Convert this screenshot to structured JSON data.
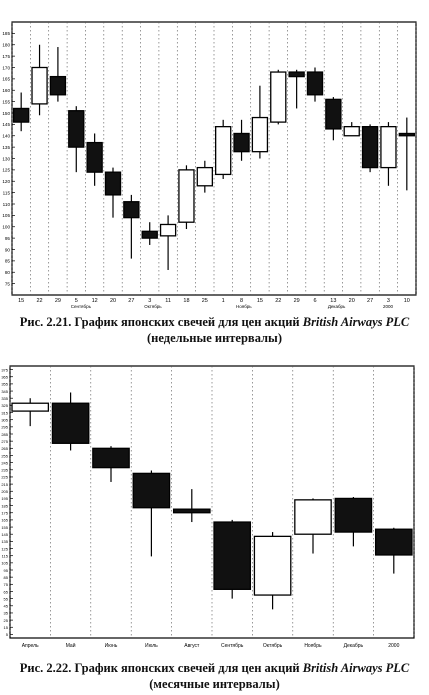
{
  "figures": [
    {
      "caption_prefix": "Рис. 2.21. График японских свечей для цен акций ",
      "caption_company": "British Airways PLC",
      "caption_suffix": "(недельные интервалы)"
    },
    {
      "caption_prefix": "Рис. 2.22. График японских свечей для цен акций ",
      "caption_company": "British Airways PLC",
      "caption_suffix": "(месячные интервалы)"
    }
  ],
  "chart_data": [
    {
      "type": "candlestick",
      "title": "",
      "ylim": [
        70,
        190
      ],
      "yticks": [
        75,
        80,
        85,
        90,
        95,
        100,
        105,
        110,
        115,
        120,
        125,
        130,
        135,
        140,
        145,
        150,
        155,
        160,
        165,
        170,
        175,
        180,
        185
      ],
      "grid": true,
      "x_tick_labels": [
        "15",
        "22",
        "29",
        "5",
        "12",
        "20",
        "27",
        "3",
        "11",
        "18",
        "25",
        "1",
        "8",
        "15",
        "22",
        "29",
        "6",
        "13",
        "20",
        "27",
        "3",
        "10"
      ],
      "month_labels": [
        {
          "after_index": 3,
          "label": "Сентябрь"
        },
        {
          "after_index": 7,
          "label": "Октябрь"
        },
        {
          "after_index": 12,
          "label": "Ноябрь"
        },
        {
          "after_index": 17,
          "label": "Декабрь"
        },
        {
          "after_index": 20,
          "label": "2000"
        }
      ],
      "candles": [
        {
          "open": 152,
          "close": 146,
          "high": 159,
          "low": 142
        },
        {
          "open": 154,
          "close": 170,
          "high": 180,
          "low": 149
        },
        {
          "open": 166,
          "close": 158,
          "high": 179,
          "low": 155
        },
        {
          "open": 151,
          "close": 135,
          "high": 153,
          "low": 124
        },
        {
          "open": 137,
          "close": 124,
          "high": 141,
          "low": 118
        },
        {
          "open": 124,
          "close": 114,
          "high": 126,
          "low": 104
        },
        {
          "open": 111,
          "close": 104,
          "high": 114,
          "low": 86
        },
        {
          "open": 98,
          "close": 95,
          "high": 102,
          "low": 92
        },
        {
          "open": 96,
          "close": 101,
          "high": 105,
          "low": 81
        },
        {
          "open": 102,
          "close": 125,
          "high": 127,
          "low": 99
        },
        {
          "open": 118,
          "close": 126,
          "high": 129,
          "low": 115
        },
        {
          "open": 123,
          "close": 144,
          "high": 147,
          "low": 121
        },
        {
          "open": 141,
          "close": 133,
          "high": 147,
          "low": 129
        },
        {
          "open": 133,
          "close": 148,
          "high": 162,
          "low": 130
        },
        {
          "open": 146,
          "close": 168,
          "high": 169,
          "low": 145
        },
        {
          "open": 168,
          "close": 166,
          "high": 169,
          "low": 152
        },
        {
          "open": 168,
          "close": 158,
          "high": 170,
          "low": 155
        },
        {
          "open": 156,
          "close": 143,
          "high": 157,
          "low": 138
        },
        {
          "open": 140,
          "close": 144,
          "high": 146,
          "low": 140
        },
        {
          "open": 144,
          "close": 126,
          "high": 145,
          "low": 124
        },
        {
          "open": 126,
          "close": 144,
          "high": 146,
          "low": 118
        },
        {
          "open": 141,
          "close": 140,
          "high": 148,
          "low": 116
        }
      ]
    },
    {
      "type": "candlestick",
      "title": "",
      "ylim": [
        0,
        380
      ],
      "yticks": [
        5,
        15,
        25,
        35,
        45,
        55,
        65,
        75,
        85,
        95,
        105,
        115,
        125,
        135,
        145,
        155,
        165,
        175,
        185,
        195,
        205,
        215,
        225,
        235,
        245,
        255,
        265,
        275,
        285,
        295,
        305,
        315,
        325,
        335,
        345,
        355,
        365,
        375
      ],
      "grid": true,
      "x_tick_labels": [
        "Апрель",
        "Май",
        "Июнь",
        "Июль",
        "Август",
        "Сентябрь",
        "Октябрь",
        "Ноябрь",
        "Декабрь",
        "2000"
      ],
      "candles": [
        {
          "open": 317,
          "close": 328,
          "high": 335,
          "low": 296
        },
        {
          "open": 328,
          "close": 272,
          "high": 343,
          "low": 262
        },
        {
          "open": 265,
          "close": 238,
          "high": 268,
          "low": 218
        },
        {
          "open": 230,
          "close": 182,
          "high": 234,
          "low": 114
        },
        {
          "open": 180,
          "close": 175,
          "high": 208,
          "low": 162
        },
        {
          "open": 162,
          "close": 68,
          "high": 165,
          "low": 55
        },
        {
          "open": 60,
          "close": 142,
          "high": 148,
          "low": 40
        },
        {
          "open": 145,
          "close": 193,
          "high": 195,
          "low": 118
        },
        {
          "open": 195,
          "close": 148,
          "high": 197,
          "low": 128
        },
        {
          "open": 152,
          "close": 116,
          "high": 154,
          "low": 90
        }
      ]
    }
  ]
}
